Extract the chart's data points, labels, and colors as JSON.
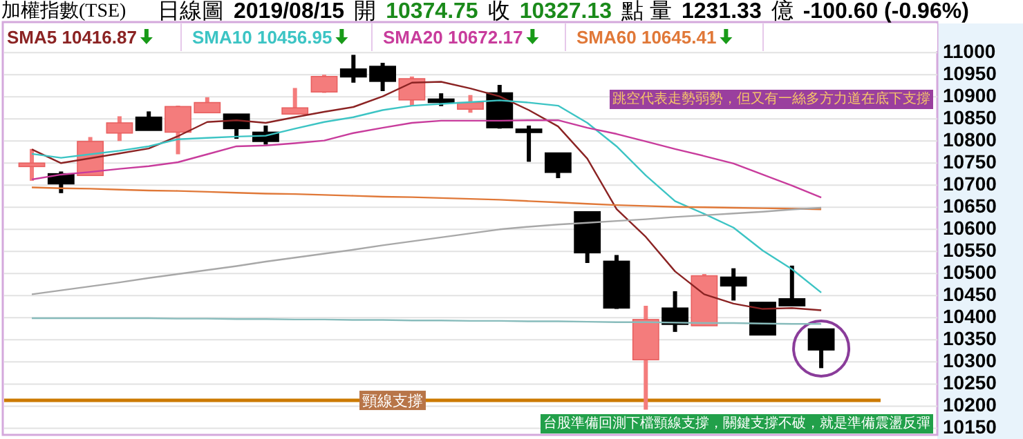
{
  "chart_data": {
    "type": "candlestick",
    "title": "加權指數(TSE)",
    "subtitle": "日線圖",
    "annotations": [
      "2019/08/15",
      "開",
      "10374.75",
      "收",
      "10327.13",
      "點 量",
      "1231.33",
      "億",
      "-100.60 (-0.96%)",
      "跳空代表走勢弱勢，但又有一絲多方力道在底下支撐",
      "台股準備回測下檔頸線支撐，關鍵支撐不破，就是準備震盪反彈"
    ],
    "categories": [
      null,
      null,
      null,
      null,
      null,
      null,
      null,
      null,
      null,
      null,
      null,
      null,
      null,
      null,
      null,
      null,
      null,
      null,
      null,
      null,
      null,
      null,
      null,
      null,
      null,
      null,
      null,
      null
    ],
    "ohlc": [
      [
        10745,
        10782,
        10710,
        10750
      ],
      [
        10726,
        10731,
        10682,
        10703
      ],
      [
        10722,
        10809,
        10722,
        10799
      ],
      [
        10818,
        10856,
        10800,
        10841
      ],
      [
        10854,
        10867,
        10824,
        10824
      ],
      [
        10820,
        10880,
        10770,
        10878
      ],
      [
        10864,
        10899,
        10864,
        10887
      ],
      [
        10861,
        10861,
        10805,
        10828
      ],
      [
        10820,
        10835,
        10792,
        10799
      ],
      [
        10861,
        10920,
        10861,
        10875
      ],
      [
        10911,
        10950,
        10909,
        10946
      ],
      [
        10963,
        10995,
        10932,
        10945
      ],
      [
        10969,
        10977,
        10913,
        10935
      ],
      [
        10893,
        10946,
        10880,
        10941
      ],
      [
        10895,
        10908,
        10879,
        10890
      ],
      [
        10872,
        10904,
        10864,
        10887
      ],
      [
        10909,
        10927,
        10828,
        10830
      ],
      [
        10827,
        10835,
        10753,
        10822
      ],
      [
        10773,
        10773,
        10716,
        10729
      ],
      [
        10640,
        10640,
        10524,
        10547
      ],
      [
        10528,
        10542,
        10420,
        10422
      ],
      [
        10305,
        10427,
        10192,
        10396
      ],
      [
        10422,
        10460,
        10368,
        10385
      ],
      [
        10382,
        10499,
        10382,
        10495
      ],
      [
        10492,
        10512,
        10439,
        10472
      ],
      [
        10435,
        10435,
        10361,
        10361
      ],
      [
        10443,
        10518,
        10427,
        10427
      ],
      [
        10374.75,
        10374.75,
        10286,
        10327.13
      ]
    ],
    "colors": [
      "#f47c7c",
      "#000000",
      "#f47c7c",
      "#f47c7c",
      "#000000",
      "#f47c7c",
      "#f47c7c",
      "#000000",
      "#000000",
      "#f47c7c",
      "#f47c7c",
      "#000000",
      "#000000",
      "#f47c7c",
      "#000000",
      "#f47c7c",
      "#000000",
      "#000000",
      "#000000",
      "#000000",
      "#000000",
      "#f47c7c",
      "#000000",
      "#f47c7c",
      "#000000",
      "#000000",
      "#000000",
      "#000000"
    ],
    "series": [
      {
        "name": "SMA5 10416.87",
        "type": "line",
        "color": "#8b2323",
        "values": [
          10781,
          10750,
          10761,
          10772,
          10783,
          10811,
          10843,
          10847,
          10841,
          10854,
          10866,
          10877,
          10901,
          10932,
          10934,
          10919,
          10901,
          10870,
          10833,
          10760,
          10646,
          10583,
          10505,
          10453,
          10432,
          10420,
          10422,
          10416.87
        ]
      },
      {
        "name": "SMA10 10456.95",
        "type": "line",
        "color": "#3cc4c4",
        "values": [
          10771,
          10762,
          10770,
          10778,
          10788,
          10804,
          10807,
          10810,
          10812,
          10828,
          10843,
          10854,
          10870,
          10880,
          10884,
          10888,
          10892,
          10887,
          10880,
          10841,
          10788,
          10722,
          10664,
          10635,
          10604,
          10552,
          10510,
          10456.95
        ]
      },
      {
        "name": "SMA20 10672.17",
        "type": "line",
        "color": "#c83c9c",
        "values": [
          10713,
          10724,
          10730,
          10737,
          10743,
          10752,
          10770,
          10788,
          10790,
          10795,
          10801,
          10818,
          10830,
          10841,
          10846,
          10846,
          10846,
          10847,
          10847,
          10830,
          10816,
          10799,
          10782,
          10766,
          10749,
          10724,
          10699,
          10672.17
        ]
      },
      {
        "name": "SMA60 10645.41",
        "type": "line",
        "color": "#e07838",
        "values": [
          10695,
          10693,
          10692,
          10690,
          10688,
          10687,
          10685,
          10683,
          10681,
          10680,
          10678,
          10676,
          10674,
          10673,
          10671,
          10669,
          10667,
          10664,
          10661,
          10658,
          10655,
          10653,
          10651,
          10650,
          10649,
          10648,
          10647,
          10645.41
        ]
      },
      {
        "type": "line",
        "color": "#a8a8a8",
        "values": [
          10453,
          10462,
          10471,
          10480,
          10490,
          10499,
          10508,
          10517,
          10527,
          10536,
          10545,
          10554,
          10564,
          10573,
          10582,
          10591,
          10600,
          10606,
          10611,
          10615,
          10619,
          10623,
          10628,
          10632,
          10636,
          10640,
          10645,
          10649
        ]
      },
      {
        "type": "line",
        "color": "#88bcbc",
        "values": [
          10399,
          10399,
          10399,
          10399,
          10399,
          10398,
          10398,
          10397,
          10397,
          10396,
          10396,
          10395,
          10395,
          10394,
          10394,
          10393,
          10393,
          10392,
          10392,
          10391,
          10390,
          10390,
          10389,
          10388,
          10388,
          10387,
          10386,
          10386
        ]
      }
    ],
    "ylim": [
      10135,
      11066
    ],
    "yticks": [
      10150,
      10200,
      10250,
      10300,
      10350,
      10400,
      10450,
      10500,
      10550,
      10600,
      10650,
      10700,
      10750,
      10800,
      10850,
      10900,
      10950,
      11000
    ],
    "ref_lines": [
      {
        "axis": "y",
        "value": 10213,
        "label": "頸線支撐",
        "color": "#cc7a00"
      }
    ],
    "grid": "y",
    "legend": "top left"
  }
}
